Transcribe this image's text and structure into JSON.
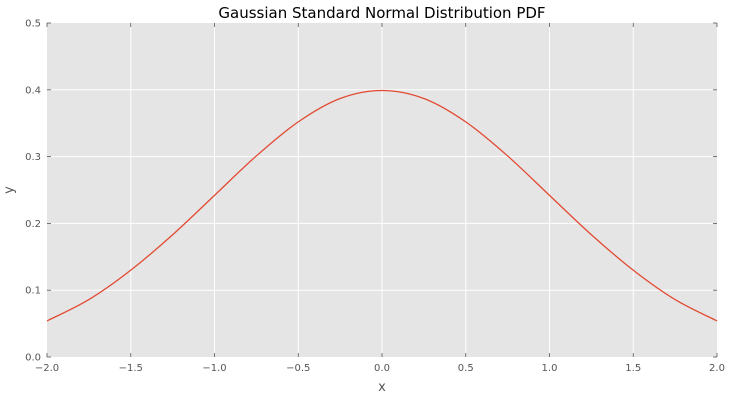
{
  "chart_data": {
    "type": "line",
    "title": "Gaussian Standard Normal Distribution PDF",
    "xlabel": "x",
    "ylabel": "y",
    "xlim": [
      -2.0,
      2.0
    ],
    "ylim": [
      0.0,
      0.5
    ],
    "x_ticks": [
      "−2.0",
      "−1.5",
      "−1.0",
      "−0.5",
      "0.0",
      "0.5",
      "1.0",
      "1.5",
      "2.0"
    ],
    "y_ticks": [
      "0.0",
      "0.1",
      "0.2",
      "0.3",
      "0.4",
      "0.5"
    ],
    "grid": true,
    "series": [
      {
        "x": [
          -2.0,
          -1.75,
          -1.5,
          -1.25,
          -1.0,
          -0.75,
          -0.5,
          -0.25,
          0.0,
          0.25,
          0.5,
          0.75,
          1.0,
          1.25,
          1.5,
          1.75,
          2.0
        ],
        "values": [
          0.054,
          0.086,
          0.13,
          0.183,
          0.242,
          0.301,
          0.352,
          0.387,
          0.399,
          0.387,
          0.352,
          0.301,
          0.242,
          0.183,
          0.13,
          0.086,
          0.054
        ]
      }
    ]
  },
  "colors": {
    "plot_background": "#e5e5e5",
    "grid": "#ffffff",
    "line": "#e24a33",
    "tick_mark": "#555555",
    "label_text": "#555555",
    "title_text": "#000000"
  }
}
